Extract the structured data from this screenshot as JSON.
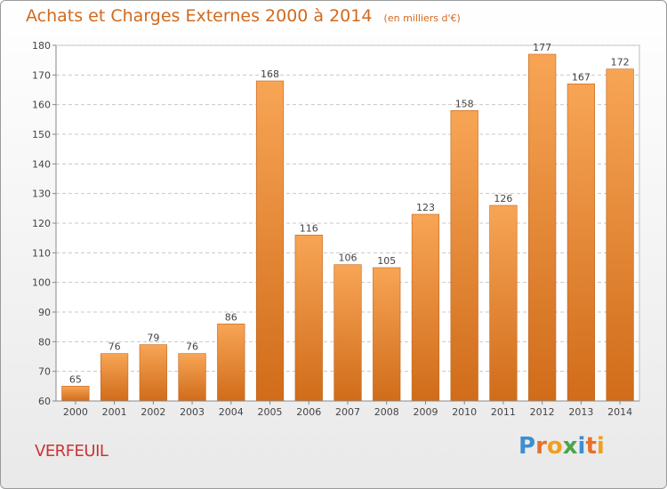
{
  "header": {
    "title": "Achats et Charges Externes 2000 à 2014",
    "subtitle": "(en milliers d'€)"
  },
  "footer": {
    "city": "VERFEUIL",
    "logo": "Proxiti",
    "logo_letters": [
      "P",
      "r",
      "o",
      "x",
      "i",
      "t",
      "i"
    ],
    "logo_colors": [
      "#3d8fd0",
      "#e8702a",
      "#f0a020",
      "#4aa54a",
      "#3d8fd0",
      "#e8702a",
      "#f0a020"
    ]
  },
  "chart_data": {
    "type": "bar",
    "title": "Achats et Charges Externes 2000 à 2014",
    "subtitle": "(en milliers d'€)",
    "categories": [
      "2000",
      "2001",
      "2002",
      "2003",
      "2004",
      "2005",
      "2006",
      "2007",
      "2008",
      "2009",
      "2010",
      "2011",
      "2012",
      "2013",
      "2014"
    ],
    "values": [
      65,
      76,
      79,
      76,
      86,
      168,
      116,
      106,
      105,
      123,
      158,
      126,
      177,
      167,
      172
    ],
    "ylim": [
      60,
      180
    ],
    "yticks": [
      60,
      70,
      80,
      90,
      100,
      110,
      120,
      130,
      140,
      150,
      160,
      170,
      180
    ],
    "grid": true,
    "colors": {
      "bar_light": "#f7a555",
      "bar_dark": "#d06c1a",
      "grid": "#c8c8c8"
    }
  }
}
